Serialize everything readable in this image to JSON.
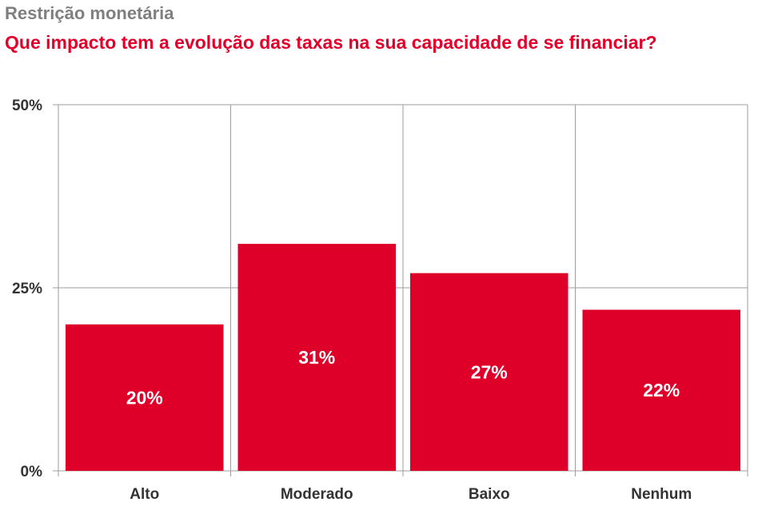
{
  "header": {
    "title": "Restrição monetária",
    "subtitle": "Que impacto tem a evolução das taxas na sua capacidade de se financiar?"
  },
  "colors": {
    "bar": "#df0029",
    "title": "#7f7f7f",
    "subtitle": "#e2002a",
    "grid": "#9e9e9e",
    "text": "#333333",
    "data_label": "#ffffff"
  },
  "chart_data": {
    "type": "bar",
    "title": "Restrição monetária",
    "subtitle": "Que impacto tem a evolução das taxas na sua capacidade de se financiar?",
    "categories": [
      "Alto",
      "Moderado",
      "Baixo",
      "Nenhum"
    ],
    "values": [
      20,
      31,
      27,
      22
    ],
    "data_labels": [
      "20%",
      "31%",
      "27%",
      "22%"
    ],
    "ylim": [
      0,
      50
    ],
    "yticks": [
      0,
      25,
      50
    ],
    "ytick_labels": [
      "0%",
      "25%",
      "50%"
    ],
    "xlabel": "",
    "ylabel": "",
    "grid": true
  }
}
